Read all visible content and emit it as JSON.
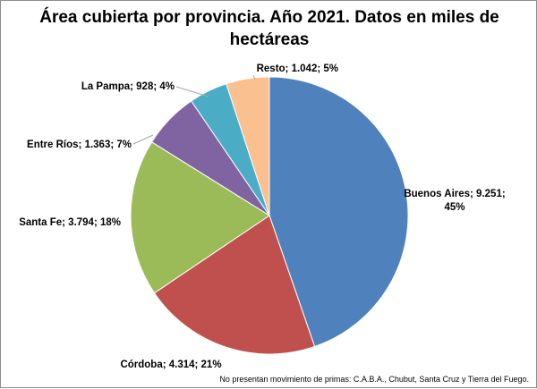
{
  "chart_data": {
    "type": "pie",
    "title": "Área cubierta por provincia. Año 2021. Datos en miles de hectáreas",
    "slices": [
      {
        "name": "Buenos Aires",
        "value": 9251,
        "value_label": "9.251",
        "percent": 45,
        "color": "#4f81bd"
      },
      {
        "name": "Córdoba",
        "value": 4314,
        "value_label": "4.314",
        "percent": 21,
        "color": "#c0504d"
      },
      {
        "name": "Santa Fe",
        "value": 3794,
        "value_label": "3.794",
        "percent": 18,
        "color": "#9bbb59"
      },
      {
        "name": "Entre Ríos",
        "value": 1363,
        "value_label": "1.363",
        "percent": 7,
        "color": "#8064a2"
      },
      {
        "name": "La Pampa",
        "value": 928,
        "value_label": "928",
        "percent": 4,
        "color": "#4bacc6"
      },
      {
        "name": "Resto",
        "value": 1042,
        "value_label": "1.042",
        "percent": 5,
        "color": "#fac090"
      }
    ],
    "start_angle": "12 o'clock",
    "direction": "clockwise",
    "legend": "none",
    "footnote": "No presentan movimiento de primas: C.A.B.A., Chubut, Santa Cruz y Tierra del Fuego."
  }
}
